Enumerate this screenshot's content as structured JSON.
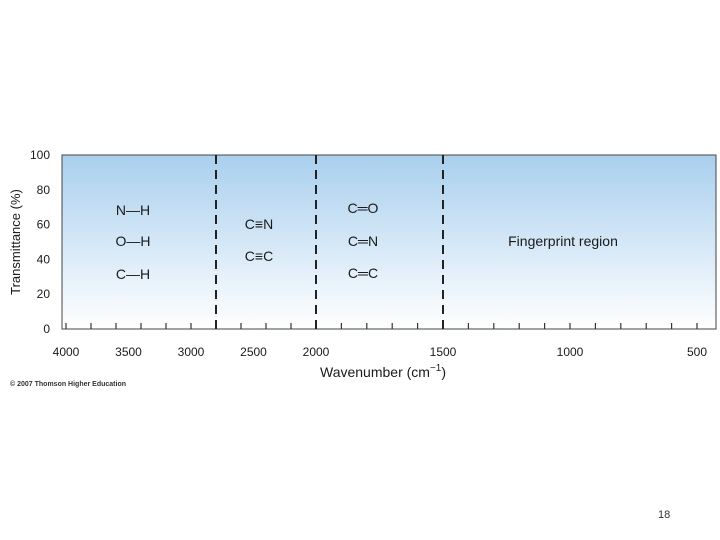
{
  "chart_data": {
    "type": "diagram",
    "ylabel": "Transmittance (%)",
    "xlabel": "Wavenumber (cm",
    "xlabel_sup": "−1",
    "xlabel_close": ")",
    "ylim": [
      0,
      100
    ],
    "xlim": [
      4000,
      400
    ],
    "y_ticks": [
      "100",
      "80",
      "60",
      "40",
      "20",
      "0"
    ],
    "x_ticks": [
      "4000",
      "3500",
      "3000",
      "2500",
      "2000",
      "1500",
      "1000",
      "500"
    ],
    "dividers": [
      2800,
      2000,
      1500
    ],
    "region_labels": {
      "single_bonds": [
        "N—H",
        "O—H",
        "C—H"
      ],
      "triple_bonds": [
        "C≡N",
        "C≡C"
      ],
      "double_bonds": [
        "C═O",
        "C═N",
        "C═C"
      ],
      "fingerprint": "Fingerprint region"
    }
  },
  "credit": "© 2007 Thomson Higher Education",
  "page_number": "18",
  "colors": {
    "gradient_top": "#a9cfee",
    "gradient_bottom": "#ffffff",
    "frame": "#444444"
  }
}
